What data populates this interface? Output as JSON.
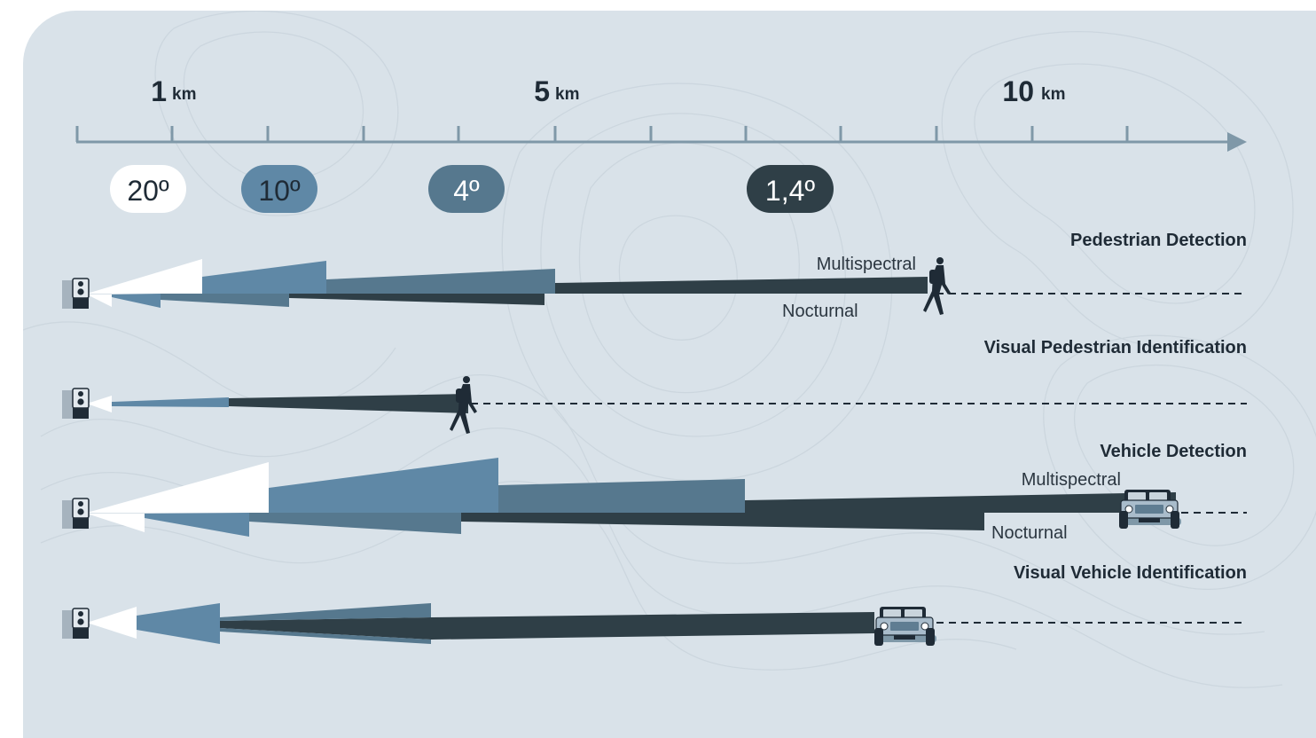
{
  "scale": {
    "ticks": [
      {
        "value": "1",
        "unit": "km"
      },
      {
        "value": "5",
        "unit": "km"
      },
      {
        "value": "10",
        "unit": "km"
      }
    ]
  },
  "angles": [
    {
      "label": "20º",
      "color": "#ffffff",
      "text_color": "#1f2b36"
    },
    {
      "label": "10º",
      "color": "#5f88a6",
      "text_color": "#1f2b36"
    },
    {
      "label": "4º",
      "color": "#56788e",
      "text_color": "#ffffff"
    },
    {
      "label": "1,4º",
      "color": "#2f3f47",
      "text_color": "#ffffff"
    }
  ],
  "rows": [
    {
      "title": "Pedestrian Detection",
      "upper_label": "Multispectral",
      "lower_label": "Nocturnal",
      "target": "pedestrian"
    },
    {
      "title": "Visual Pedestrian Identification",
      "target": "pedestrian"
    },
    {
      "title": "Vehicle Detection",
      "upper_label": "Multispectral",
      "lower_label": "Nocturnal",
      "target": "vehicle"
    },
    {
      "title": "Visual Vehicle Identification",
      "target": "vehicle"
    }
  ],
  "colors": {
    "background": "#d9e2e9",
    "axis": "#7f98a8",
    "white_beam": "#ffffff",
    "beam_10": "#5f88a6",
    "beam_4": "#56788e",
    "beam_14": "#2f3f47",
    "text_dark": "#1f2b36"
  },
  "icons": [
    "camera-icon",
    "pedestrian-icon",
    "vehicle-icon",
    "arrow-icon"
  ]
}
